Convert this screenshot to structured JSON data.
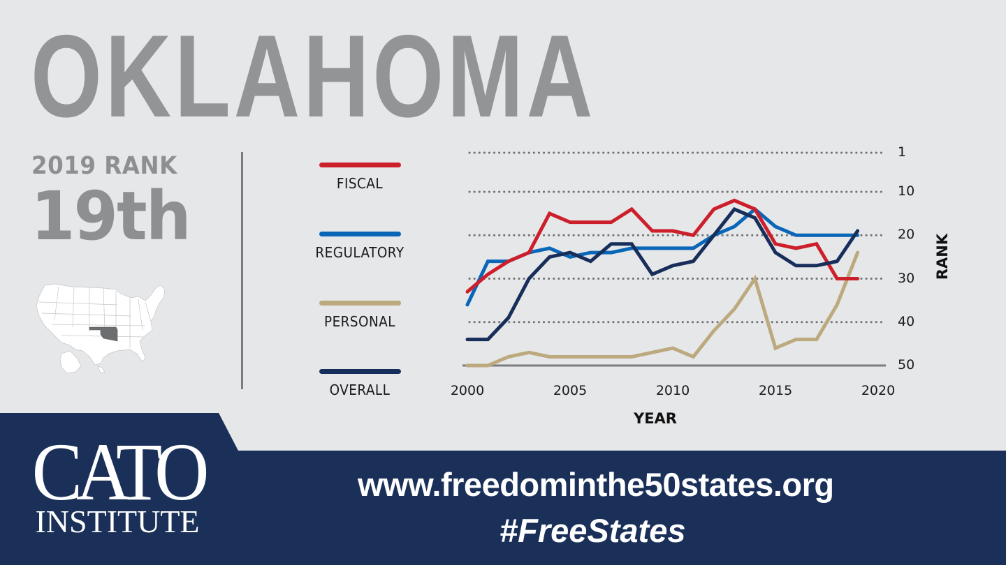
{
  "header": {
    "title": "OKLAHOMA"
  },
  "rank": {
    "label": "2019 RANK",
    "value": "19th"
  },
  "map": {
    "highlight_state": "Oklahoma",
    "fill": "#ffffff",
    "highlight_fill": "#6d6e70"
  },
  "legend": [
    {
      "label": "FISCAL",
      "color": "#cc1f2b"
    },
    {
      "label": "REGULATORY",
      "color": "#0a66b7"
    },
    {
      "label": "PERSONAL",
      "color": "#bca97e"
    },
    {
      "label": "OVERALL",
      "color": "#172e5a"
    }
  ],
  "footer": {
    "logo_top": "CATO",
    "logo_bottom": "INSTITUTE",
    "url": "www.freedominthe50states.org",
    "hashtag": "#FreeStates",
    "background": "#1a3059"
  },
  "chart_data": {
    "type": "line",
    "title": "",
    "xlabel": "YEAR",
    "ylabel": "RANK",
    "x": [
      2000,
      2001,
      2002,
      2003,
      2004,
      2005,
      2006,
      2007,
      2008,
      2009,
      2010,
      2011,
      2012,
      2013,
      2014,
      2015,
      2016,
      2017,
      2018,
      2019
    ],
    "xlim": [
      2000,
      2020
    ],
    "xticks": [
      2000,
      2005,
      2010,
      2015,
      2020
    ],
    "ylim": [
      50,
      1
    ],
    "yticks": [
      1,
      10,
      20,
      30,
      40,
      50
    ],
    "y_inverted": true,
    "grid": "dotted horizontal",
    "legend_position": "left",
    "series": [
      {
        "name": "FISCAL",
        "color": "#cc1f2b",
        "values": [
          33,
          29,
          26,
          24,
          15,
          17,
          17,
          17,
          14,
          19,
          19,
          20,
          14,
          12,
          14,
          22,
          23,
          22,
          30,
          30
        ]
      },
      {
        "name": "REGULATORY",
        "color": "#0a66b7",
        "values": [
          36,
          26,
          26,
          24,
          23,
          25,
          24,
          24,
          23,
          23,
          23,
          23,
          20,
          18,
          14,
          18,
          20,
          20,
          20,
          20
        ]
      },
      {
        "name": "PERSONAL",
        "color": "#bca97e",
        "values": [
          50,
          50,
          48,
          47,
          48,
          48,
          48,
          48,
          48,
          47,
          46,
          48,
          42,
          37,
          30,
          46,
          44,
          44,
          36,
          24
        ]
      },
      {
        "name": "OVERALL",
        "color": "#172e5a",
        "values": [
          44,
          44,
          39,
          30,
          25,
          24,
          26,
          22,
          22,
          29,
          27,
          26,
          20,
          14,
          16,
          24,
          27,
          27,
          26,
          19
        ]
      }
    ]
  }
}
